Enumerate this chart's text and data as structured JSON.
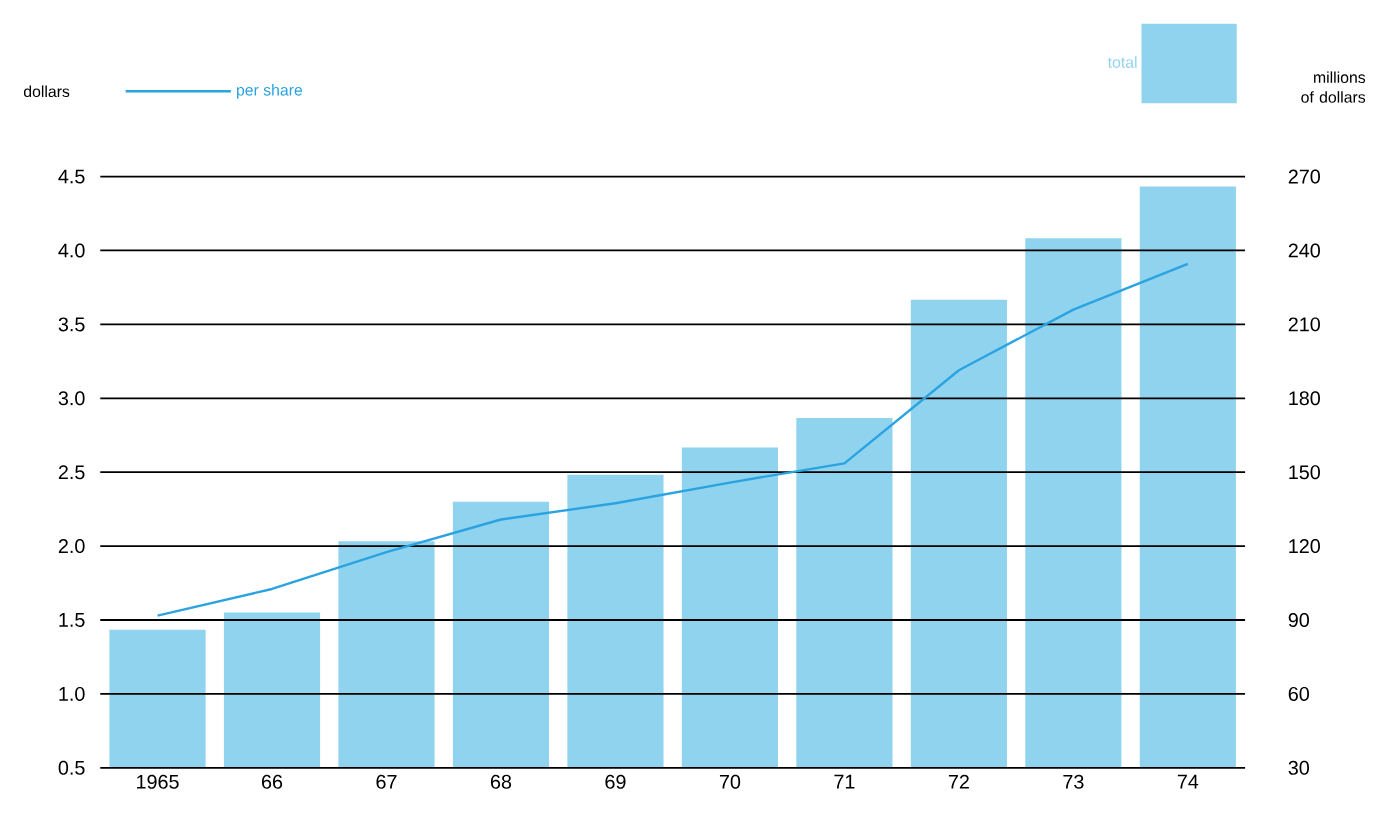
{
  "chart_data": {
    "type": "bar",
    "categories": [
      "1965",
      "66",
      "67",
      "68",
      "69",
      "70",
      "71",
      "72",
      "73",
      "74"
    ],
    "ylabel": "dollars",
    "y2label": "millions of dollars",
    "series": [
      {
        "name": "total",
        "axis": "y2",
        "color": "#8fd3ef",
        "values": [
          86,
          93,
          122,
          138,
          149,
          160,
          172,
          220,
          245,
          266
        ]
      },
      {
        "name": "per share",
        "type": "line",
        "axis": "y",
        "color": "#2aa3e0",
        "values": [
          1.53,
          1.71,
          1.96,
          2.18,
          2.29,
          2.43,
          2.56,
          3.19,
          3.6,
          3.91
        ]
      }
    ],
    "ylim": [
      0.5,
      4.5
    ],
    "yticks": [
      0.5,
      {
        "value": 1,
        "label": "1.0"
      },
      1.5,
      {
        "value": 2,
        "label": "2.0"
      },
      2.5,
      {
        "value": 3,
        "label": "3.0"
      },
      3.5,
      {
        "value": 4,
        "label": "4.0"
      },
      4.5
    ],
    "y2lim": [
      30,
      270
    ],
    "y2ticks": [
      30,
      60,
      90,
      120,
      150,
      180,
      210,
      240,
      270
    ],
    "grid": true,
    "legend": "top",
    "marker": "none",
    "line_style": "solid"
  }
}
